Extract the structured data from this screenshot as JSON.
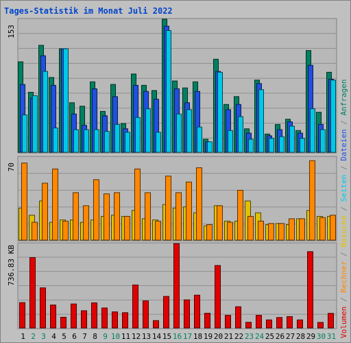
{
  "title": "Tages-Statistik im Monat Juli 2022",
  "legend": [
    {
      "label": "Volumen",
      "color": "#e00000"
    },
    {
      "label": " / ",
      "color": "#808080"
    },
    {
      "label": "Rechner",
      "color": "#ff8800"
    },
    {
      "label": " / ",
      "color": "#808080"
    },
    {
      "label": "Besuche",
      "color": "#e0c000"
    },
    {
      "label": " / ",
      "color": "#808080"
    },
    {
      "label": "Seiten",
      "color": "#00c8e8"
    },
    {
      "label": " / ",
      "color": "#808080"
    },
    {
      "label": "Dateien",
      "color": "#2050e0"
    },
    {
      "label": " / ",
      "color": "#808080"
    },
    {
      "label": "Anfragen",
      "color": "#008060"
    }
  ],
  "chart_data": [
    {
      "type": "bar",
      "ymax_label": "153",
      "ylim": [
        0,
        153
      ],
      "categories": [
        "1",
        "2",
        "3",
        "4",
        "5",
        "6",
        "7",
        "8",
        "9",
        "10",
        "11",
        "12",
        "13",
        "14",
        "15",
        "16",
        "17",
        "18",
        "19",
        "20",
        "21",
        "22",
        "23",
        "24",
        "25",
        "26",
        "27",
        "28",
        "29",
        "30",
        "31"
      ],
      "series": [
        {
          "name": "Anfragen",
          "color": "#008060",
          "values": [
            104,
            69,
            123,
            86,
            119,
            57,
            53,
            81,
            47,
            78,
            33,
            90,
            77,
            71,
            153,
            82,
            74,
            81,
            15,
            107,
            55,
            64,
            27,
            83,
            21,
            32,
            38,
            25,
            117,
            46,
            92
          ]
        },
        {
          "name": "Dateien",
          "color": "#2050e0",
          "values": [
            78,
            62,
            111,
            77,
            119,
            44,
            31,
            73,
            42,
            64,
            27,
            77,
            70,
            61,
            145,
            73,
            57,
            70,
            12,
            93,
            49,
            55,
            22,
            79,
            19,
            26,
            35,
            22,
            100,
            32,
            84
          ]
        },
        {
          "name": "Seiten",
          "color": "#00c8e8",
          "values": [
            43,
            65,
            93,
            28,
            119,
            26,
            26,
            26,
            24,
            32,
            23,
            40,
            50,
            23,
            140,
            44,
            49,
            29,
            12,
            92,
            25,
            41,
            15,
            72,
            16,
            18,
            30,
            16,
            50,
            26,
            83
          ]
        }
      ]
    },
    {
      "type": "bar",
      "ymax_label": "70",
      "ylim": [
        0,
        70
      ],
      "categories": [
        "1",
        "2",
        "3",
        "4",
        "5",
        "6",
        "7",
        "8",
        "9",
        "10",
        "11",
        "12",
        "13",
        "14",
        "15",
        "16",
        "17",
        "18",
        "19",
        "20",
        "21",
        "22",
        "23",
        "24",
        "25",
        "26",
        "27",
        "28",
        "29",
        "30",
        "31"
      ],
      "series": [
        {
          "name": "Besuche",
          "color": "#e0c000",
          "values": [
            27,
            21,
            33,
            15,
            17,
            17,
            15,
            17,
            20,
            21,
            20,
            25,
            18,
            17,
            30,
            27,
            28,
            23,
            12,
            29,
            16,
            16,
            33,
            23,
            13,
            14,
            13,
            18,
            25,
            20,
            20
          ]
        },
        {
          "name": "Rechner",
          "color": "#ff8800",
          "values": [
            65,
            15,
            48,
            60,
            16,
            40,
            29,
            51,
            39,
            40,
            20,
            60,
            40,
            16,
            54,
            40,
            49,
            61,
            13,
            29,
            15,
            42,
            20,
            16,
            14,
            14,
            18,
            18,
            67,
            19,
            21
          ]
        }
      ]
    },
    {
      "type": "bar",
      "ymax_label": "736.83 KB",
      "ylim": [
        0,
        736.83
      ],
      "categories": [
        "1",
        "2",
        "3",
        "4",
        "5",
        "6",
        "7",
        "8",
        "9",
        "10",
        "11",
        "12",
        "13",
        "14",
        "15",
        "16",
        "17",
        "18",
        "19",
        "20",
        "21",
        "22",
        "23",
        "24",
        "25",
        "26",
        "27",
        "28",
        "29",
        "30",
        "31"
      ],
      "series": [
        {
          "name": "Volumen",
          "color": "#e00000",
          "values": [
            221,
            614,
            350,
            200,
            93,
            209,
            150,
            219,
            174,
            140,
            133,
            375,
            236,
            64,
            275,
            736,
            245,
            286,
            128,
            545,
            110,
            185,
            49,
            110,
            70,
            91,
            99,
            70,
            666,
            48,
            127
          ]
        }
      ]
    }
  ],
  "x_labels": [
    {
      "text": "1",
      "color": "#000000"
    },
    {
      "text": "2",
      "color": "#008060"
    },
    {
      "text": "3",
      "color": "#008060"
    },
    {
      "text": "4",
      "color": "#000000"
    },
    {
      "text": "5",
      "color": "#000000"
    },
    {
      "text": "6",
      "color": "#000000"
    },
    {
      "text": "7",
      "color": "#000000"
    },
    {
      "text": "8",
      "color": "#000000"
    },
    {
      "text": "9",
      "color": "#008060"
    },
    {
      "text": "10",
      "color": "#008060"
    },
    {
      "text": "11",
      "color": "#000000"
    },
    {
      "text": "12",
      "color": "#000000"
    },
    {
      "text": "13",
      "color": "#000000"
    },
    {
      "text": "14",
      "color": "#000000"
    },
    {
      "text": "15",
      "color": "#000000"
    },
    {
      "text": "16",
      "color": "#008060"
    },
    {
      "text": "17",
      "color": "#008060"
    },
    {
      "text": "18",
      "color": "#000000"
    },
    {
      "text": "19",
      "color": "#000000"
    },
    {
      "text": "20",
      "color": "#000000"
    },
    {
      "text": "21",
      "color": "#000000"
    },
    {
      "text": "22",
      "color": "#000000"
    },
    {
      "text": "23",
      "color": "#008060"
    },
    {
      "text": "24",
      "color": "#008060"
    },
    {
      "text": "25",
      "color": "#000000"
    },
    {
      "text": "26",
      "color": "#000000"
    },
    {
      "text": "27",
      "color": "#000000"
    },
    {
      "text": "28",
      "color": "#000000"
    },
    {
      "text": "29",
      "color": "#000000"
    },
    {
      "text": "30",
      "color": "#008060"
    },
    {
      "text": "31",
      "color": "#008060"
    }
  ]
}
